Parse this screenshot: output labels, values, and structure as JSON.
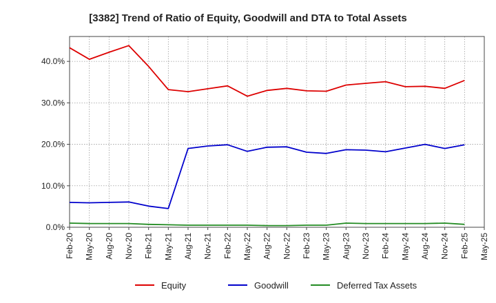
{
  "chart_data": {
    "type": "line",
    "title": "[3382]  Trend of Ratio of Equity, Goodwill and DTA to Total Assets",
    "x": [
      "Feb-20",
      "May-20",
      "Aug-20",
      "Nov-20",
      "Feb-21",
      "May-21",
      "Aug-21",
      "Nov-21",
      "Feb-22",
      "May-22",
      "Aug-22",
      "Nov-22",
      "Feb-23",
      "May-23",
      "Aug-23",
      "Nov-23",
      "Feb-24",
      "May-24",
      "Aug-24",
      "Nov-24",
      "Feb-25",
      "May-25"
    ],
    "ylim": [
      0,
      46
    ],
    "yticks": [
      0,
      10,
      20,
      30,
      40
    ],
    "ytick_labels": [
      "0.0%",
      "10.0%",
      "20.0%",
      "30.0%",
      "40.0%"
    ],
    "grid": true,
    "legend_position": "bottom",
    "series": [
      {
        "name": "Equity",
        "color": "#dd0000",
        "values": [
          43.3,
          40.5,
          42.2,
          43.8,
          38.8,
          33.2,
          32.7,
          33.4,
          34.1,
          31.6,
          33.0,
          33.5,
          32.9,
          32.8,
          34.3,
          34.7,
          35.1,
          33.9,
          34.0,
          33.5,
          35.4,
          null
        ]
      },
      {
        "name": "Goodwill",
        "color": "#0000cc",
        "values": [
          6.0,
          5.9,
          6.0,
          6.1,
          5.1,
          4.5,
          19.0,
          19.6,
          19.9,
          18.3,
          19.3,
          19.4,
          18.1,
          17.8,
          18.7,
          18.6,
          18.2,
          19.1,
          20.0,
          19.0,
          19.9,
          null
        ]
      },
      {
        "name": "Deferred Tax Assets",
        "color": "#228b22",
        "values": [
          1.0,
          0.9,
          0.9,
          0.9,
          0.7,
          0.6,
          0.5,
          0.5,
          0.5,
          0.5,
          0.4,
          0.4,
          0.5,
          0.5,
          1.0,
          0.9,
          0.9,
          0.9,
          0.9,
          1.0,
          0.7,
          null
        ]
      }
    ]
  }
}
